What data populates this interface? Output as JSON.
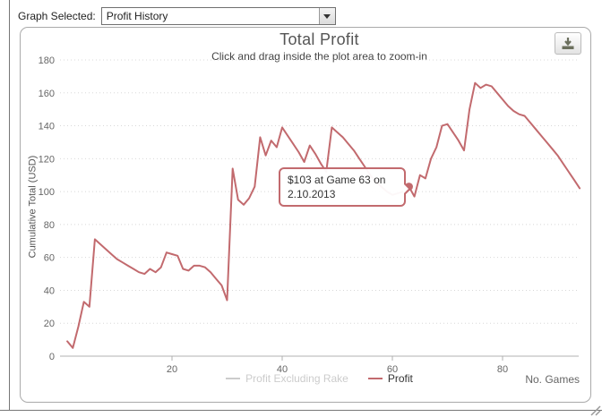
{
  "topbar": {
    "label": "Graph Selected:",
    "selected_option": "Profit History"
  },
  "export_button": {
    "icon": "download-icon"
  },
  "chart_data": {
    "type": "line",
    "title": "Total Profit",
    "subtitle": "Click and drag inside the plot area to zoom-in",
    "xlabel": "No. Games",
    "ylabel": "Cumulative Total (USD)",
    "xlim": [
      0,
      100
    ],
    "ylim": [
      0,
      180
    ],
    "xticks": [
      20,
      40,
      60,
      80
    ],
    "yticks": [
      0,
      20,
      40,
      60,
      80,
      100,
      120,
      140,
      160,
      180
    ],
    "grid": "dotted",
    "legend_position": "bottom-center",
    "series": [
      {
        "name": "Profit Excluding Rake",
        "visible": false,
        "color": "#cccccc",
        "text_color": "#cccccc",
        "values": []
      },
      {
        "name": "Profit",
        "visible": true,
        "color": "#c26a6e",
        "text_color": "#333333",
        "x_start_game": 1,
        "values": [
          9,
          5,
          18,
          33,
          30,
          71,
          68,
          65,
          62,
          59,
          57,
          55,
          53,
          51,
          50,
          53,
          51,
          54,
          63,
          62,
          61,
          53,
          52,
          55,
          55,
          54,
          51,
          47,
          43,
          34,
          114,
          95,
          92,
          96,
          103,
          133,
          122,
          131,
          127,
          139,
          134,
          129,
          124,
          118,
          128,
          123,
          117,
          112,
          139,
          136,
          133,
          129,
          125,
          120,
          115,
          110,
          106,
          103,
          100,
          98,
          99,
          100,
          103,
          97,
          110,
          108,
          120,
          127,
          140,
          141,
          136,
          131,
          125,
          150,
          166,
          163,
          165,
          164,
          160,
          156,
          152,
          149,
          147,
          146,
          142,
          138,
          134,
          130,
          126,
          122,
          117,
          112,
          107,
          102
        ]
      }
    ],
    "marker": {
      "x": 63,
      "y": 103,
      "date": "2.10.2013"
    },
    "tooltip": {
      "line1": "$103 at Game 63 on",
      "line2": "2.10.2013"
    },
    "colors": {
      "line": "#c26a6e",
      "grid": "#d8d8d8",
      "axis": "#b0b0b0",
      "tick_text": "#666666"
    }
  }
}
